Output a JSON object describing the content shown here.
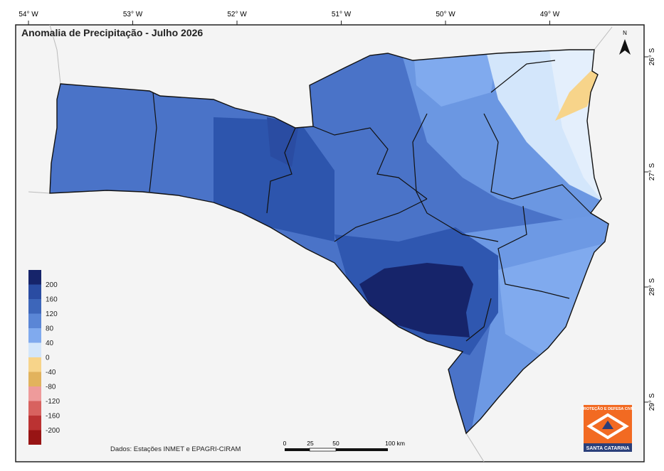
{
  "title": "Anomalia de Precipitação - Julho 2026",
  "longitudes": [
    "54° W",
    "53° W",
    "52° W",
    "51° W",
    "50° W",
    "49° W"
  ],
  "latitudes": [
    "26° S",
    "27° S",
    "28° S",
    "29° S"
  ],
  "north": "N",
  "legend": {
    "labels": [
      "200",
      "160",
      "120",
      "80",
      "40",
      "0",
      "-40",
      "-80",
      "-120",
      "-160",
      "-200"
    ],
    "colors": [
      "#16246a",
      "#2a4ca2",
      "#3d66ba",
      "#5a86d6",
      "#80aaee",
      "#d3e6fb",
      "#f7d48a",
      "#e2b35d",
      "#ee9b9b",
      "#d8625f",
      "#bb3232",
      "#981414"
    ]
  },
  "source": "Dados: Estações INMET e EPAGRI-CIRAM",
  "scale": [
    "0",
    "25",
    "50",
    "100 km"
  ],
  "logo": {
    "top": "PROTEÇÃO E DEFESA CIVIL",
    "bottom": "SANTA CATARINA"
  }
}
